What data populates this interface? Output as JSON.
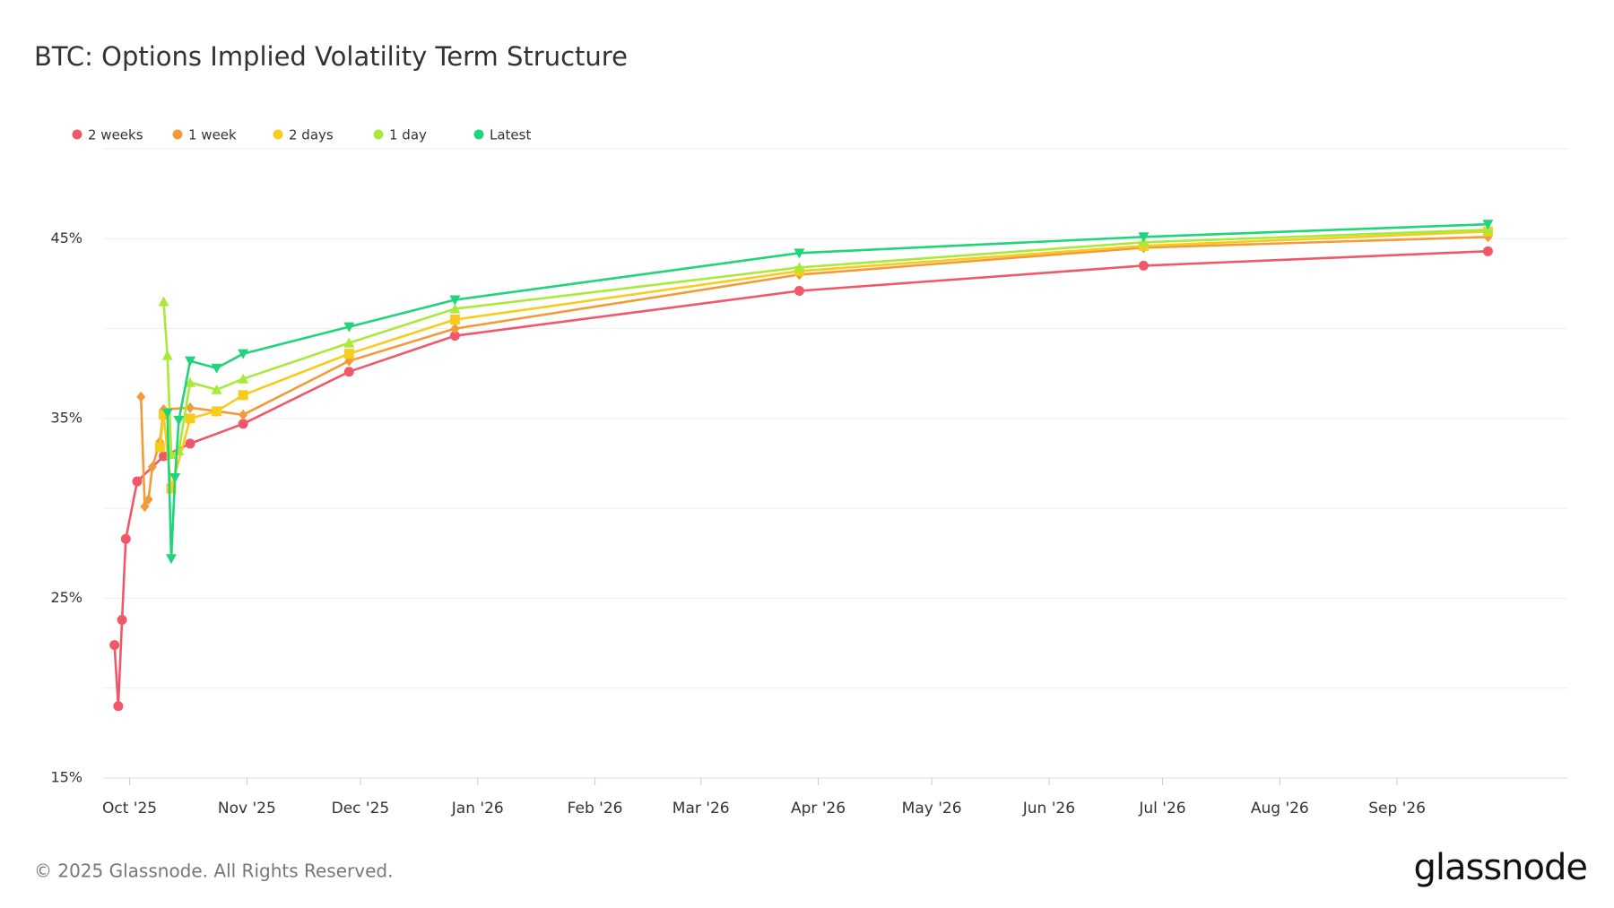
{
  "chart_data": {
    "type": "line",
    "title": "BTC: Options Implied Volatility Term Structure",
    "footer": "© 2025 Glassnode. All Rights Reserved.",
    "brand": "glassnode",
    "xlim": [
      "2025-09-24",
      "2026-10-16"
    ],
    "xticks": [
      {
        "value": "2025-10-01",
        "label": "Oct '25"
      },
      {
        "value": "2025-11-01",
        "label": "Nov '25"
      },
      {
        "value": "2025-12-01",
        "label": "Dec '25"
      },
      {
        "value": "2026-01-01",
        "label": "Jan '26"
      },
      {
        "value": "2026-02-01",
        "label": "Feb '26"
      },
      {
        "value": "2026-03-01",
        "label": "Mar '26"
      },
      {
        "value": "2026-04-01",
        "label": "Apr '26"
      },
      {
        "value": "2026-05-01",
        "label": "May '26"
      },
      {
        "value": "2026-06-01",
        "label": "Jun '26"
      },
      {
        "value": "2026-07-01",
        "label": "Jul '26"
      },
      {
        "value": "2026-08-01",
        "label": "Aug '26"
      },
      {
        "value": "2026-09-01",
        "label": "Sep '26"
      }
    ],
    "ylim": [
      15,
      50
    ],
    "yticks": [
      {
        "value": 15,
        "label": "15%"
      },
      {
        "value": 25,
        "label": "25%"
      },
      {
        "value": 35,
        "label": "35%"
      },
      {
        "value": 45,
        "label": "45%"
      }
    ],
    "ygrid": [
      20,
      30,
      40,
      50
    ],
    "legend": "top-left",
    "series": [
      {
        "name": "2 weeks",
        "color": "#f0586a",
        "marker": "circle",
        "x": [
          "2025-09-27",
          "2025-09-28",
          "2025-09-29",
          "2025-09-30",
          "2025-10-03",
          "2025-10-10",
          "2025-10-17",
          "2025-10-31",
          "2025-11-28",
          "2025-12-26",
          "2026-03-27",
          "2026-06-26",
          "2026-09-25"
        ],
        "values": [
          22.4,
          19.0,
          23.8,
          28.3,
          31.5,
          32.9,
          33.6,
          34.7,
          37.6,
          39.6,
          42.1,
          43.5,
          44.3
        ]
      },
      {
        "name": "1 week",
        "color": "#f39a3a",
        "marker": "diamond",
        "x": [
          "2025-10-04",
          "2025-10-05",
          "2025-10-06",
          "2025-10-07",
          "2025-10-09",
          "2025-10-10",
          "2025-10-17",
          "2025-10-24",
          "2025-10-31",
          "2025-11-28",
          "2025-12-26",
          "2026-03-27",
          "2026-06-26",
          "2026-09-25"
        ],
        "values": [
          36.2,
          30.1,
          30.5,
          32.3,
          33.7,
          35.5,
          35.6,
          35.4,
          35.2,
          38.2,
          40.0,
          43.0,
          44.5,
          45.1
        ]
      },
      {
        "name": "2 days",
        "color": "#f7cc1d",
        "marker": "square",
        "x": [
          "2025-10-09",
          "2025-10-10",
          "2025-10-12",
          "2025-10-17",
          "2025-10-24",
          "2025-10-31",
          "2025-11-28",
          "2025-12-26",
          "2026-03-27",
          "2026-06-26",
          "2026-09-25"
        ],
        "values": [
          33.4,
          35.2,
          31.1,
          35.0,
          35.4,
          36.3,
          38.6,
          40.5,
          43.2,
          44.6,
          45.4
        ]
      },
      {
        "name": "1 day",
        "color": "#a8ea3c",
        "marker": "triangle-up",
        "x": [
          "2025-10-10",
          "2025-10-11",
          "2025-10-12",
          "2025-10-14",
          "2025-10-17",
          "2025-10-24",
          "2025-10-31",
          "2025-11-28",
          "2025-12-26",
          "2026-03-27",
          "2026-06-26",
          "2026-09-25"
        ],
        "values": [
          41.5,
          38.5,
          33.0,
          33.2,
          37.0,
          36.6,
          37.2,
          39.2,
          41.1,
          43.4,
          44.8,
          45.5
        ]
      },
      {
        "name": "Latest",
        "color": "#1fd47a",
        "marker": "triangle-down",
        "x": [
          "2025-10-11",
          "2025-10-12",
          "2025-10-13",
          "2025-10-14",
          "2025-10-17",
          "2025-10-24",
          "2025-10-31",
          "2025-11-28",
          "2025-12-26",
          "2026-03-27",
          "2026-06-26",
          "2026-09-25"
        ],
        "values": [
          35.3,
          27.2,
          31.7,
          34.9,
          38.2,
          37.8,
          38.6,
          40.1,
          41.6,
          44.2,
          45.1,
          45.8
        ]
      }
    ]
  }
}
